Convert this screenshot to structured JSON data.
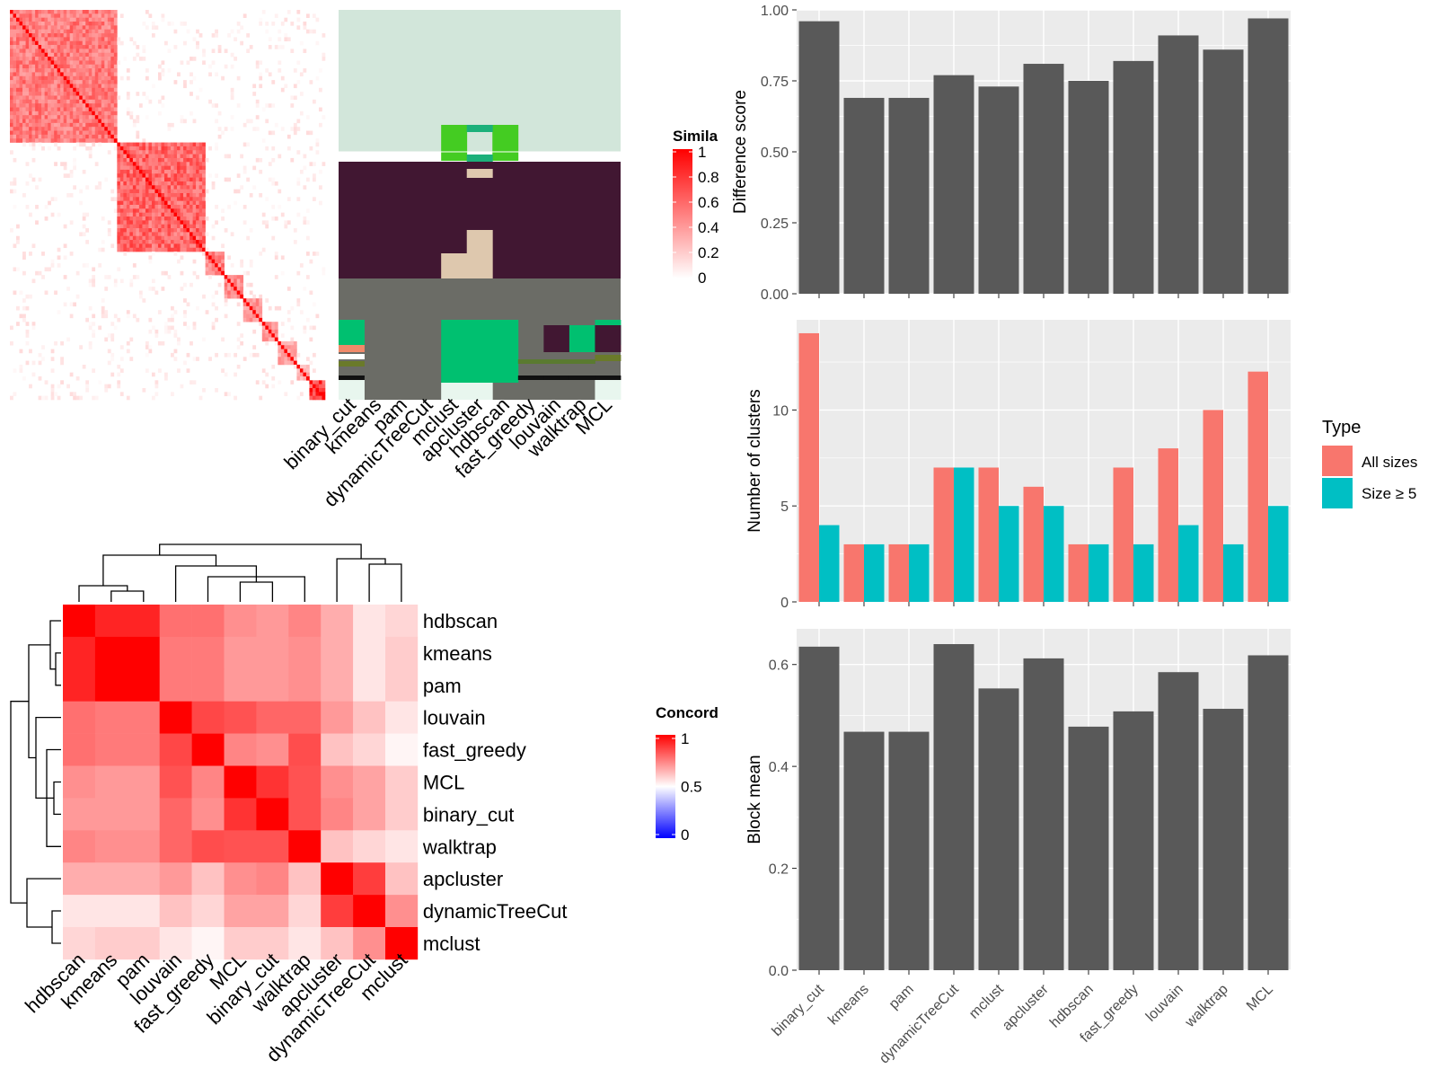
{
  "methods": [
    "binary_cut",
    "kmeans",
    "pam",
    "dynamicTreeCut",
    "mclust",
    "apcluster",
    "hdbscan",
    "fast_greedy",
    "louvain",
    "walktrap",
    "MCL"
  ],
  "similarity_panel": {
    "legend_title": "Simila",
    "legend_ticks": [
      "1",
      "0.8",
      "0.6",
      "0.4",
      "0.2",
      "0"
    ]
  },
  "concordance_panel": {
    "legend_title": "Concord",
    "legend_ticks": [
      "1",
      "0.5",
      "0"
    ],
    "order": [
      "hdbscan",
      "kmeans",
      "pam",
      "louvain",
      "fast_greedy",
      "MCL",
      "binary_cut",
      "walktrap",
      "apcluster",
      "dynamicTreeCut",
      "mclust"
    ]
  },
  "legend": {
    "title": "Type",
    "entries": [
      {
        "label": "All sizes",
        "color": "#F8766D"
      },
      {
        "label": "Size ≥ 5",
        "color": "#00BFC4"
      }
    ]
  },
  "colors": {
    "bar_dark": "#595959",
    "panel_bg": "#EBEBEB",
    "heat_red": "#FF0000"
  },
  "chart_data": [
    {
      "type": "bar",
      "categories": [
        "binary_cut",
        "kmeans",
        "pam",
        "dynamicTreeCut",
        "mclust",
        "apcluster",
        "hdbscan",
        "fast_greedy",
        "louvain",
        "walktrap",
        "MCL"
      ],
      "values": [
        0.96,
        0.69,
        0.69,
        0.77,
        0.73,
        0.81,
        0.75,
        0.82,
        0.91,
        0.86,
        0.97
      ],
      "ylabel": "Difference score",
      "ylim": [
        0,
        1
      ],
      "yticks": [
        "0.00",
        "0.25",
        "0.50",
        "0.75",
        "1.00"
      ]
    },
    {
      "type": "bar",
      "categories": [
        "binary_cut",
        "kmeans",
        "pam",
        "dynamicTreeCut",
        "mclust",
        "apcluster",
        "hdbscan",
        "fast_greedy",
        "louvain",
        "walktrap",
        "MCL"
      ],
      "series": [
        {
          "name": "All sizes",
          "values": [
            14,
            3,
            3,
            7,
            7,
            6,
            3,
            7,
            8,
            10,
            12
          ]
        },
        {
          "name": "Size ≥ 5",
          "values": [
            4,
            3,
            3,
            7,
            5,
            5,
            3,
            3,
            4,
            3,
            5
          ]
        }
      ],
      "ylabel": "Number of clusters",
      "ylim": [
        0,
        14.7
      ],
      "yticks": [
        "0",
        "5",
        "10"
      ]
    },
    {
      "type": "bar",
      "categories": [
        "binary_cut",
        "kmeans",
        "pam",
        "dynamicTreeCut",
        "mclust",
        "apcluster",
        "hdbscan",
        "fast_greedy",
        "louvain",
        "walktrap",
        "MCL"
      ],
      "values": [
        0.635,
        0.468,
        0.468,
        0.64,
        0.553,
        0.612,
        0.478,
        0.508,
        0.585,
        0.513,
        0.618
      ],
      "ylabel": "Block mean",
      "ylim": [
        0,
        0.67
      ],
      "yticks": [
        "0.0",
        "0.2",
        "0.4",
        "0.6"
      ]
    }
  ]
}
